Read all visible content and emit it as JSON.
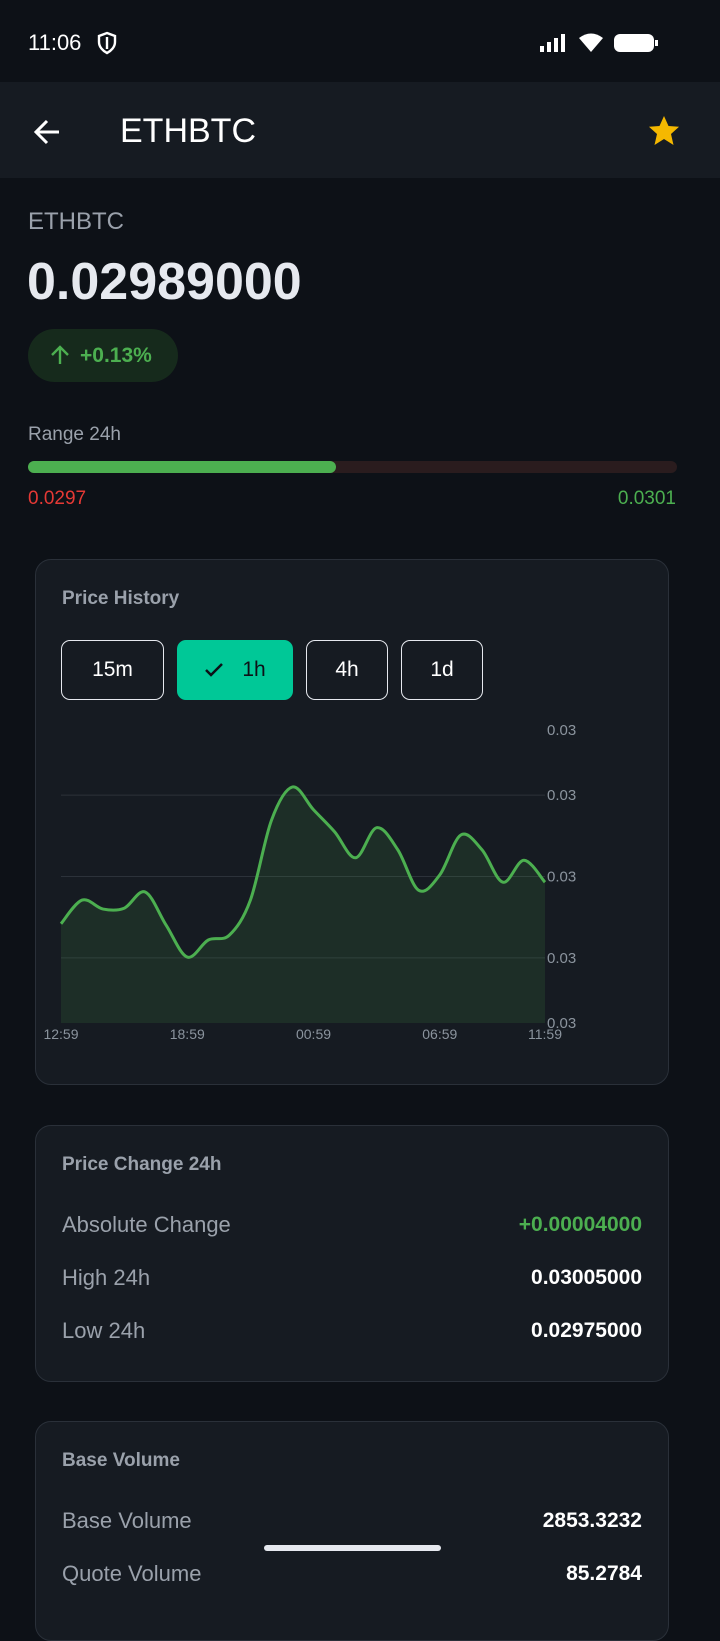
{
  "status_bar": {
    "time": "11:06"
  },
  "app_bar": {
    "title": "ETHBTC"
  },
  "header": {
    "symbol": "ETHBTC",
    "price": "0.02989000",
    "change": "+0.13%"
  },
  "range": {
    "label": "Range 24h",
    "low": 0.0297,
    "high": 0.0301
  },
  "intervals": {
    "options": [
      "15m",
      "1h",
      "4h",
      "1d"
    ],
    "selected": "1h"
  },
  "chart_data": {
    "type": "line",
    "title": "Price History",
    "categories": [
      "12:59",
      null,
      null,
      null,
      null,
      null,
      "18:59",
      null,
      null,
      null,
      null,
      null,
      "00:59",
      null,
      null,
      null,
      null,
      null,
      "06:59",
      null,
      null,
      null,
      null,
      "11:59"
    ],
    "series": [
      {
        "name": "ETHBTC",
        "color": "#4caf50",
        "values": [
          0.029842,
          0.029871,
          0.02986,
          0.029861,
          0.029881,
          0.02984,
          0.029801,
          0.029822,
          0.029828,
          0.029871,
          0.029969,
          0.03001,
          0.029982,
          0.029955,
          0.029923,
          0.02996,
          0.029933,
          0.029883,
          0.029902,
          0.029951,
          0.029933,
          0.029893,
          0.02992,
          0.029893
        ]
      }
    ],
    "ylim": [
      0.02972,
      0.03008
    ],
    "yticks": [
      {
        "value": 0.02972,
        "label": "0.03"
      },
      {
        "value": 0.0298,
        "label": "0.03"
      },
      {
        "value": 0.0299,
        "label": "0.03"
      },
      {
        "value": 0.03,
        "label": "0.03"
      },
      {
        "value": 0.03008,
        "label": "0.03"
      }
    ],
    "grid": true
  },
  "price_change": {
    "title": "Price Change 24h",
    "rows": [
      [
        "Absolute Change",
        "+0.00004000"
      ],
      [
        "High 24h",
        "0.03005000"
      ],
      [
        "Low 24h",
        "0.02975000"
      ]
    ]
  },
  "volume": {
    "title": "Base Volume",
    "rows": [
      [
        "Base Volume",
        "2853.3232"
      ],
      [
        "Quote Volume",
        "85.2784"
      ]
    ]
  }
}
